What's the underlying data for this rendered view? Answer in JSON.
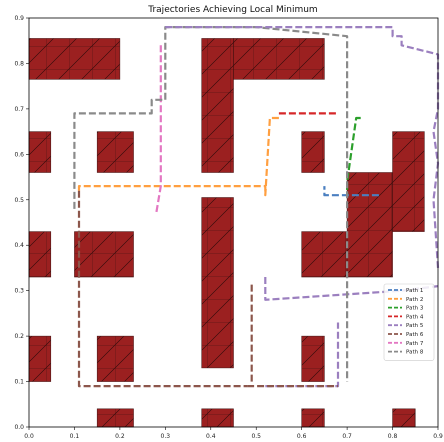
{
  "chart_data": {
    "type": "line",
    "title": "Trajectories Achieving Local Minimum",
    "xlabel": "",
    "ylabel": "",
    "xlim": [
      0.0,
      0.9
    ],
    "ylim": [
      0.0,
      0.9
    ],
    "x_ticks": [
      "0.0",
      "0.1",
      "0.2",
      "0.3",
      "0.4",
      "0.5",
      "0.6",
      "0.7",
      "0.8",
      "0.9"
    ],
    "y_ticks": [
      "0.0",
      "0.1",
      "0.2",
      "0.3",
      "0.4",
      "0.5",
      "0.6",
      "0.7",
      "0.8",
      "0.9"
    ],
    "grid": false,
    "legend_position": "lower-right",
    "obstacle_color": "#9b2020",
    "obstacles": [
      [
        0.0,
        0.2,
        0.765,
        0.855
      ],
      [
        0.0,
        0.048,
        0.56,
        0.65
      ],
      [
        0.0,
        0.048,
        0.33,
        0.43
      ],
      [
        0.0,
        0.048,
        0.1,
        0.2
      ],
      [
        0.15,
        0.23,
        0.56,
        0.65
      ],
      [
        0.15,
        0.23,
        0.1,
        0.2
      ],
      [
        0.1,
        0.23,
        0.33,
        0.43
      ],
      [
        0.38,
        0.45,
        0.13,
        0.505
      ],
      [
        0.38,
        0.45,
        0.56,
        0.855
      ],
      [
        0.45,
        0.65,
        0.765,
        0.855
      ],
      [
        0.6,
        0.65,
        0.56,
        0.65
      ],
      [
        0.6,
        0.65,
        0.1,
        0.2
      ],
      [
        0.6,
        0.7,
        0.33,
        0.43
      ],
      [
        0.7,
        0.8,
        0.33,
        0.56
      ],
      [
        0.8,
        0.87,
        0.43,
        0.65
      ],
      [
        0.15,
        0.23,
        0.0,
        0.04
      ],
      [
        0.38,
        0.45,
        0.0,
        0.04
      ],
      [
        0.6,
        0.65,
        0.0,
        0.04
      ],
      [
        0.8,
        0.85,
        0.0,
        0.04
      ]
    ],
    "series": [
      {
        "name": "Path 1",
        "color": "#4a7fc0",
        "x": [
          0.77,
          0.65,
          0.65
        ],
        "y": [
          0.51,
          0.51,
          0.53
        ]
      },
      {
        "name": "Path 2",
        "color": "#ff9f40",
        "x": [
          0.55,
          0.53,
          0.52,
          0.52,
          0.11,
          0.11
        ],
        "y": [
          0.68,
          0.68,
          0.51,
          0.53,
          0.53,
          0.52
        ]
      },
      {
        "name": "Path 3",
        "color": "#2ca02c",
        "x": [
          0.73,
          0.72,
          0.7,
          0.7,
          0.7
        ],
        "y": [
          0.68,
          0.68,
          0.54,
          0.52,
          0.51
        ]
      },
      {
        "name": "Path 4",
        "color": "#d62728",
        "x": [
          0.55,
          0.68
        ],
        "y": [
          0.69,
          0.69
        ]
      },
      {
        "name": "Path 5",
        "color": "#9b7fbf",
        "x": [
          0.52,
          0.52,
          0.82,
          0.9
        ],
        "y": [
          0.33,
          0.28,
          0.3,
          0.31
        ]
      },
      {
        "name": "Path 6",
        "color": "#8c564b",
        "x": [
          0.11,
          0.11,
          0.48
        ],
        "y": [
          0.52,
          0.09,
          0.09
        ]
      },
      {
        "name": "Path 7",
        "color": "#e377c2",
        "x": [
          0.29,
          0.29,
          0.28
        ],
        "y": [
          0.84,
          0.53,
          0.47
        ]
      },
      {
        "name": "Path 8",
        "color": "#8a8a8a",
        "x": [
          0.1,
          0.1,
          0.27,
          0.27,
          0.3,
          0.3,
          0.5,
          0.7,
          0.7
        ],
        "y": [
          0.48,
          0.69,
          0.69,
          0.72,
          0.72,
          0.88,
          0.88,
          0.86,
          0.1
        ]
      },
      {
        "name": "",
        "color": "#9b7fbf",
        "x": [
          0.3,
          0.6,
          0.7,
          0.72,
          0.8,
          0.8,
          0.8,
          0.82,
          0.82,
          0.9,
          0.9,
          0.89,
          0.9,
          0.89,
          0.9
        ],
        "y": [
          0.88,
          0.88,
          0.88,
          0.88,
          0.88,
          0.86,
          0.86,
          0.86,
          0.84,
          0.82,
          0.7,
          0.65,
          0.58,
          0.5,
          0.35
        ]
      },
      {
        "name": "",
        "color": "#9b7fbf",
        "x": [
          0.52,
          0.68,
          0.68,
          0.68
        ],
        "y": [
          0.09,
          0.09,
          0.14,
          0.23
        ]
      },
      {
        "name": "",
        "color": "#8c564b",
        "x": [
          0.48,
          0.68
        ],
        "y": [
          0.09,
          0.09
        ]
      },
      {
        "name": "",
        "color": "#8c564b",
        "x": [
          0.49,
          0.49
        ],
        "y": [
          0.1,
          0.32
        ]
      }
    ]
  }
}
